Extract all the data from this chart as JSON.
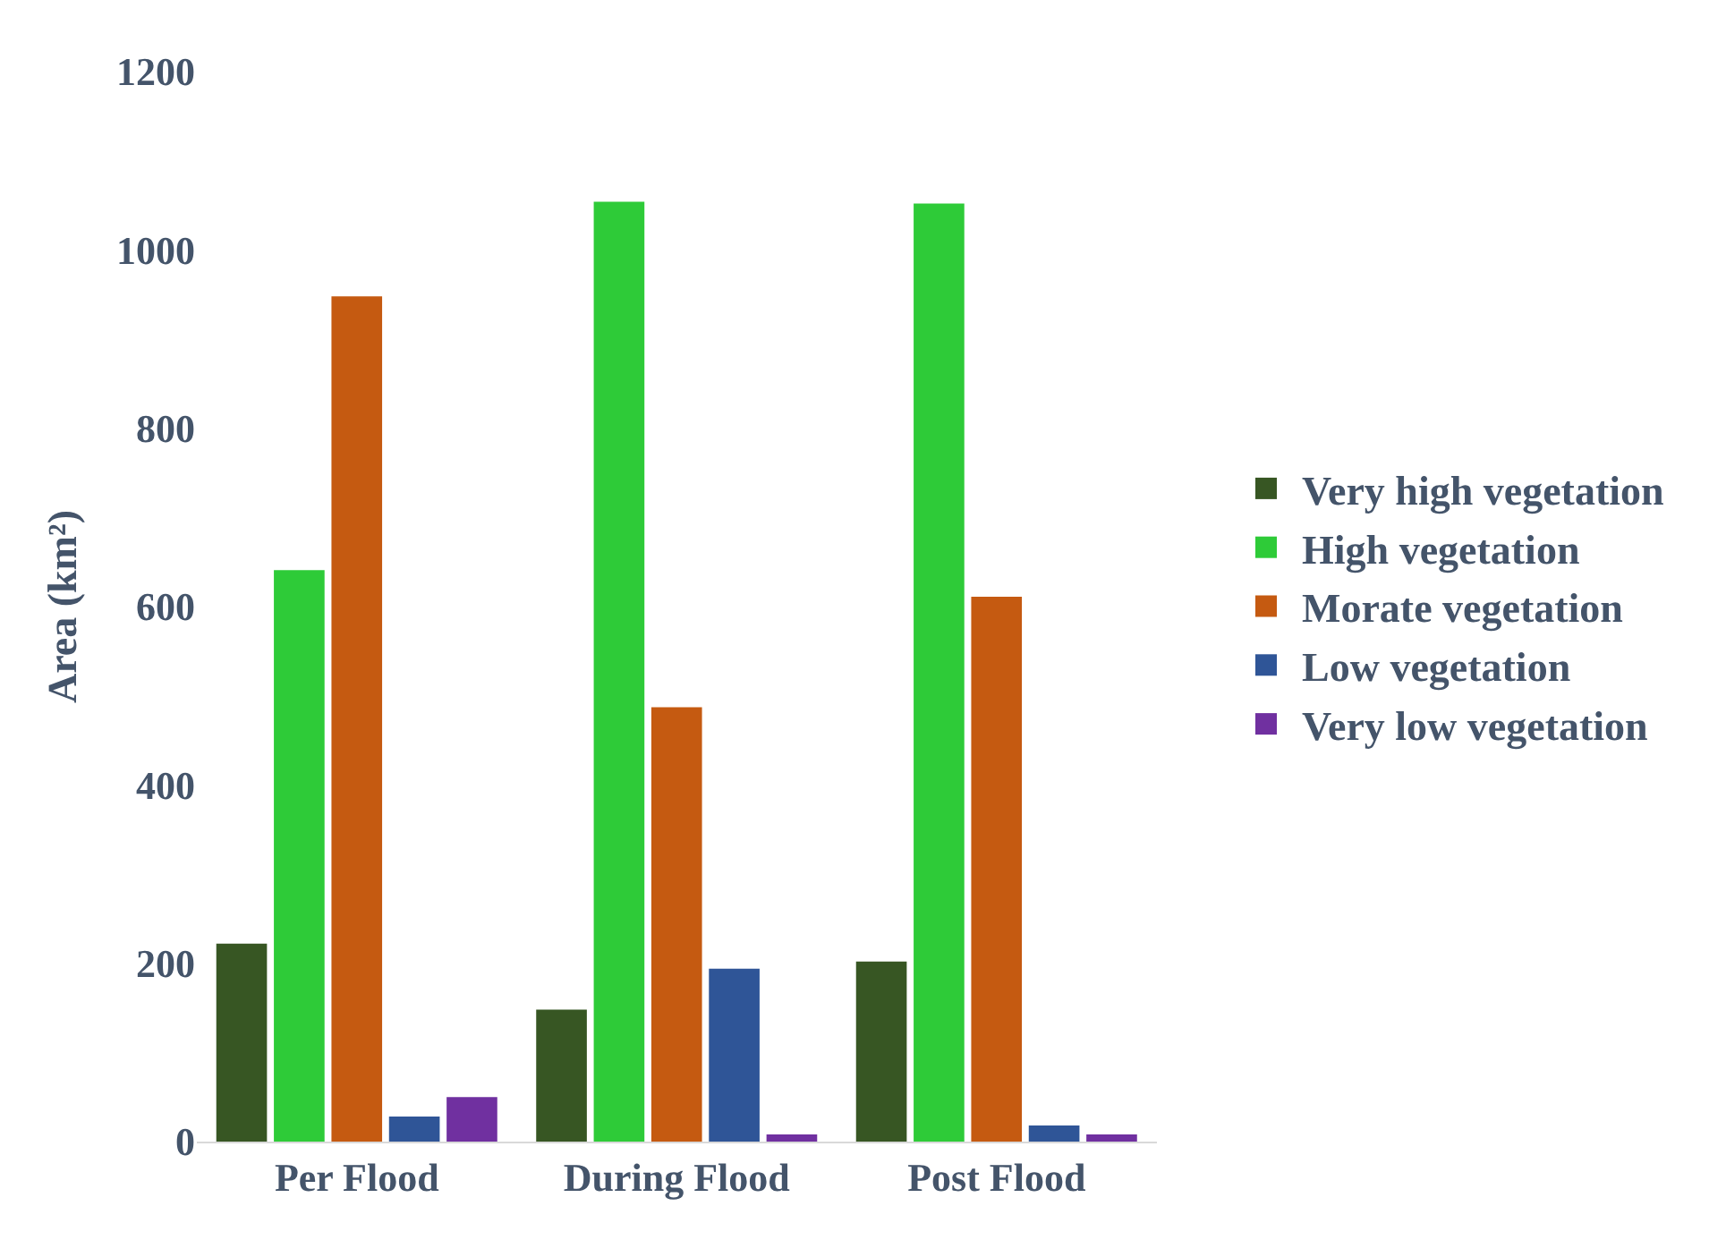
{
  "chart_data": {
    "type": "bar",
    "ylabel": "Area (km²)",
    "categories": [
      "Per Flood",
      "During Flood",
      "Post Flood"
    ],
    "series": [
      {
        "name": "Very high vegetation",
        "color": "#375623",
        "values": [
          222,
          148,
          202
        ]
      },
      {
        "name": "High vegetation",
        "color": "#2ecb38",
        "values": [
          641,
          1054,
          1052
        ]
      },
      {
        "name": "Morate vegetation",
        "color": "#c55a11",
        "values": [
          948,
          487,
          611
        ]
      },
      {
        "name": "Low vegetation",
        "color": "#2f5597",
        "values": [
          28,
          194,
          18
        ]
      },
      {
        "name": "Very low vegetation",
        "color": "#7030a0",
        "values": [
          50,
          8,
          8
        ]
      }
    ],
    "ylim": [
      0,
      1200
    ],
    "yticks": [
      0,
      200,
      400,
      600,
      800,
      1000,
      1200
    ],
    "grid": false,
    "legend": "right"
  }
}
